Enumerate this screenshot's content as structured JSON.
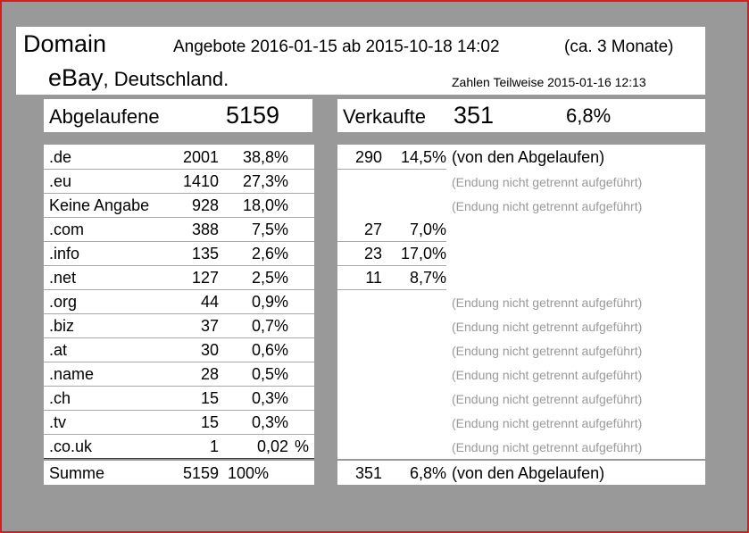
{
  "header": {
    "domain": "Domain",
    "angebote": "Angebote 2016-01-15 ab 2015-10-18 14:02",
    "duration": "(ca. 3 Monate)",
    "platform": "eBay",
    "country": ", Deutschland.",
    "zahlen": "Zahlen Teilweise 2015-01-16 12:13"
  },
  "abgelaufene": {
    "label": "Abgelaufene",
    "value": "5159"
  },
  "verkaufte": {
    "label": "Verkaufte",
    "value": "351",
    "pct": "6,8%"
  },
  "rows": [
    {
      "name": ".de",
      "count": "2001",
      "pct": "38,8%",
      "suffix": "",
      "sold": "290",
      "sold_pct": "14,5%",
      "note": "(von den Abgelaufen)",
      "note_gray": false
    },
    {
      "name": ".eu",
      "count": "1410",
      "pct": "27,3%",
      "suffix": "",
      "sold": "",
      "sold_pct": "",
      "note": "(Endung nicht getrennt aufgeführt)",
      "note_gray": true
    },
    {
      "name": "Keine Angabe",
      "count": "928",
      "pct": "18,0%",
      "suffix": "",
      "sold": "",
      "sold_pct": "",
      "note": "(Endung nicht getrennt aufgeführt)",
      "note_gray": true
    },
    {
      "name": ".com",
      "count": "388",
      "pct": "7,5%",
      "suffix": "",
      "sold": "27",
      "sold_pct": "7,0%",
      "note": "",
      "note_gray": false
    },
    {
      "name": ".info",
      "count": "135",
      "pct": "2,6%",
      "suffix": "",
      "sold": "23",
      "sold_pct": "17,0%",
      "note": "",
      "note_gray": false
    },
    {
      "name": ".net",
      "count": "127",
      "pct": "2,5%",
      "suffix": "",
      "sold": "11",
      "sold_pct": "8,7%",
      "note": "",
      "note_gray": false
    },
    {
      "name": ".org",
      "count": "44",
      "pct": "0,9%",
      "suffix": "",
      "sold": "",
      "sold_pct": "",
      "note": "(Endung nicht getrennt aufgeführt)",
      "note_gray": true
    },
    {
      "name": ".biz",
      "count": "37",
      "pct": "0,7%",
      "suffix": "",
      "sold": "",
      "sold_pct": "",
      "note": "(Endung nicht getrennt aufgeführt)",
      "note_gray": true
    },
    {
      "name": ".at",
      "count": "30",
      "pct": "0,6%",
      "suffix": "",
      "sold": "",
      "sold_pct": "",
      "note": "(Endung nicht getrennt aufgeführt)",
      "note_gray": true
    },
    {
      "name": ".name",
      "count": "28",
      "pct": "0,5%",
      "suffix": "",
      "sold": "",
      "sold_pct": "",
      "note": "(Endung nicht getrennt aufgeführt)",
      "note_gray": true
    },
    {
      "name": ".ch",
      "count": "15",
      "pct": "0,3%",
      "suffix": "",
      "sold": "",
      "sold_pct": "",
      "note": "(Endung nicht getrennt aufgeführt)",
      "note_gray": true
    },
    {
      "name": ".tv",
      "count": "15",
      "pct": "0,3%",
      "suffix": "",
      "sold": "",
      "sold_pct": "",
      "note": "(Endung nicht getrennt aufgeführt)",
      "note_gray": true
    },
    {
      "name": ".co.uk",
      "count": "1",
      "pct": "0,02",
      "suffix": "%",
      "sold": "",
      "sold_pct": "",
      "note": "(Endung nicht getrennt aufgeführt)",
      "note_gray": true
    }
  ],
  "summe": {
    "name": "Summe",
    "count": "5159",
    "pct": "100%",
    "sold": "351",
    "sold_pct": "6,8%",
    "note": "(von den Abgelaufen)"
  }
}
